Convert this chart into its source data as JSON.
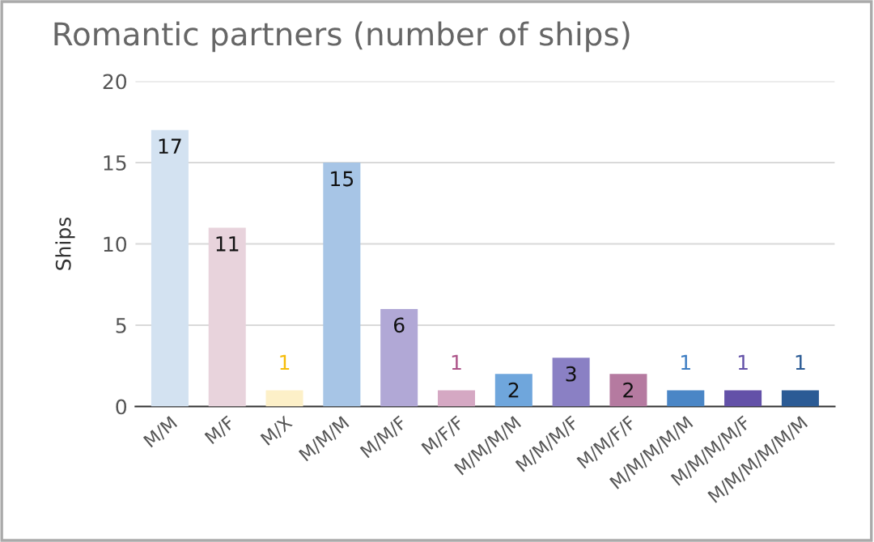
{
  "chart_data": {
    "type": "bar",
    "title": "Romantic partners (number of ships)",
    "ylabel": "Ships",
    "categories": [
      "M/M",
      "M/F",
      "M/X",
      "M/M/M",
      "M/M/F",
      "M/F/F",
      "M/M/M/M",
      "M/M/M/F",
      "M/M/F/F",
      "M/M/M/M/M",
      "M/M/M/M/F",
      "M/M/M/M/M/M"
    ],
    "values": [
      17,
      11,
      1,
      15,
      6,
      1,
      2,
      3,
      2,
      1,
      1,
      1
    ],
    "colors": [
      "#d3e2f1",
      "#e8d3dc",
      "#fdf0c8",
      "#a7c5e6",
      "#b1a8d6",
      "#d5a8c3",
      "#6fa6dc",
      "#8a80c4",
      "#b57aa0",
      "#4a86c6",
      "#6351a8",
      "#2b5b95"
    ],
    "ylim": [
      0,
      20
    ],
    "yticks": [
      0,
      5,
      10,
      15,
      20
    ],
    "grid": "y",
    "data_labels": true
  }
}
